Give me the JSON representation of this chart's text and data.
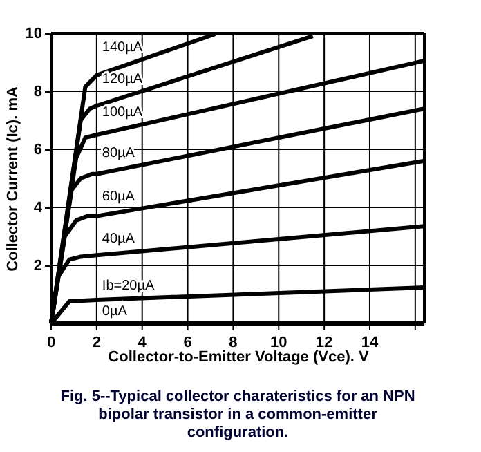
{
  "chart_data": {
    "type": "line",
    "xlabel": "Collector-to-Emitter Voltage (Vce). V",
    "ylabel": "Collector Current (Ic). mA",
    "annotations": [
      "Fig. 5--Typical collector charateristics for an NPN bipolar transistor in a common-emitter configuration."
    ],
    "xlim": [
      0,
      16.4
    ],
    "ylim": [
      0,
      10
    ],
    "xticks": [
      0,
      2,
      4,
      6,
      8,
      10,
      12,
      14,
      {
        "value": 16,
        "label": null
      }
    ],
    "yticks": [
      2,
      4,
      6,
      8,
      10
    ],
    "grid": true,
    "legend": false,
    "marker": "none",
    "line_style": "solid",
    "series": [
      {
        "name": "0µA",
        "color": "#000000",
        "x": [
          0,
          16.4
        ],
        "values": [
          0,
          0
        ]
      },
      {
        "name": "Ib=20µA",
        "color": "#000000",
        "x": [
          0,
          0.8,
          2,
          16.4
        ],
        "values": [
          0,
          0.76,
          0.81,
          1.24
        ]
      },
      {
        "name": "40µA",
        "color": "#000000",
        "x": [
          0,
          0.3,
          0.8,
          1.3,
          2,
          16.4
        ],
        "values": [
          0,
          1.6,
          2.2,
          2.3,
          2.35,
          3.35
        ]
      },
      {
        "name": "60µA",
        "color": "#000000",
        "x": [
          0,
          0.6,
          1.1,
          1.6,
          2,
          16.4
        ],
        "values": [
          0,
          3.0,
          3.55,
          3.7,
          3.7,
          5.6
        ]
      },
      {
        "name": "80µA",
        "color": "#000000",
        "x": [
          0,
          0.9,
          1.3,
          1.8,
          2,
          16.4
        ],
        "values": [
          0,
          4.6,
          5.0,
          5.15,
          5.15,
          7.4
        ]
      },
      {
        "name": "100µA",
        "color": "#000000",
        "x": [
          0,
          1.1,
          1.5,
          2,
          16.4
        ],
        "values": [
          0,
          5.7,
          6.4,
          6.5,
          9.05
        ]
      },
      {
        "name": "120µA",
        "color": "#000000",
        "x": [
          0,
          1.3,
          1.7,
          2,
          11.5
        ],
        "values": [
          0,
          7.0,
          7.4,
          7.5,
          9.9
        ]
      },
      {
        "name": "140µA",
        "color": "#000000",
        "x": [
          0,
          1.5,
          2,
          7.2
        ],
        "values": [
          0,
          8.15,
          8.55,
          9.97
        ]
      }
    ]
  }
}
